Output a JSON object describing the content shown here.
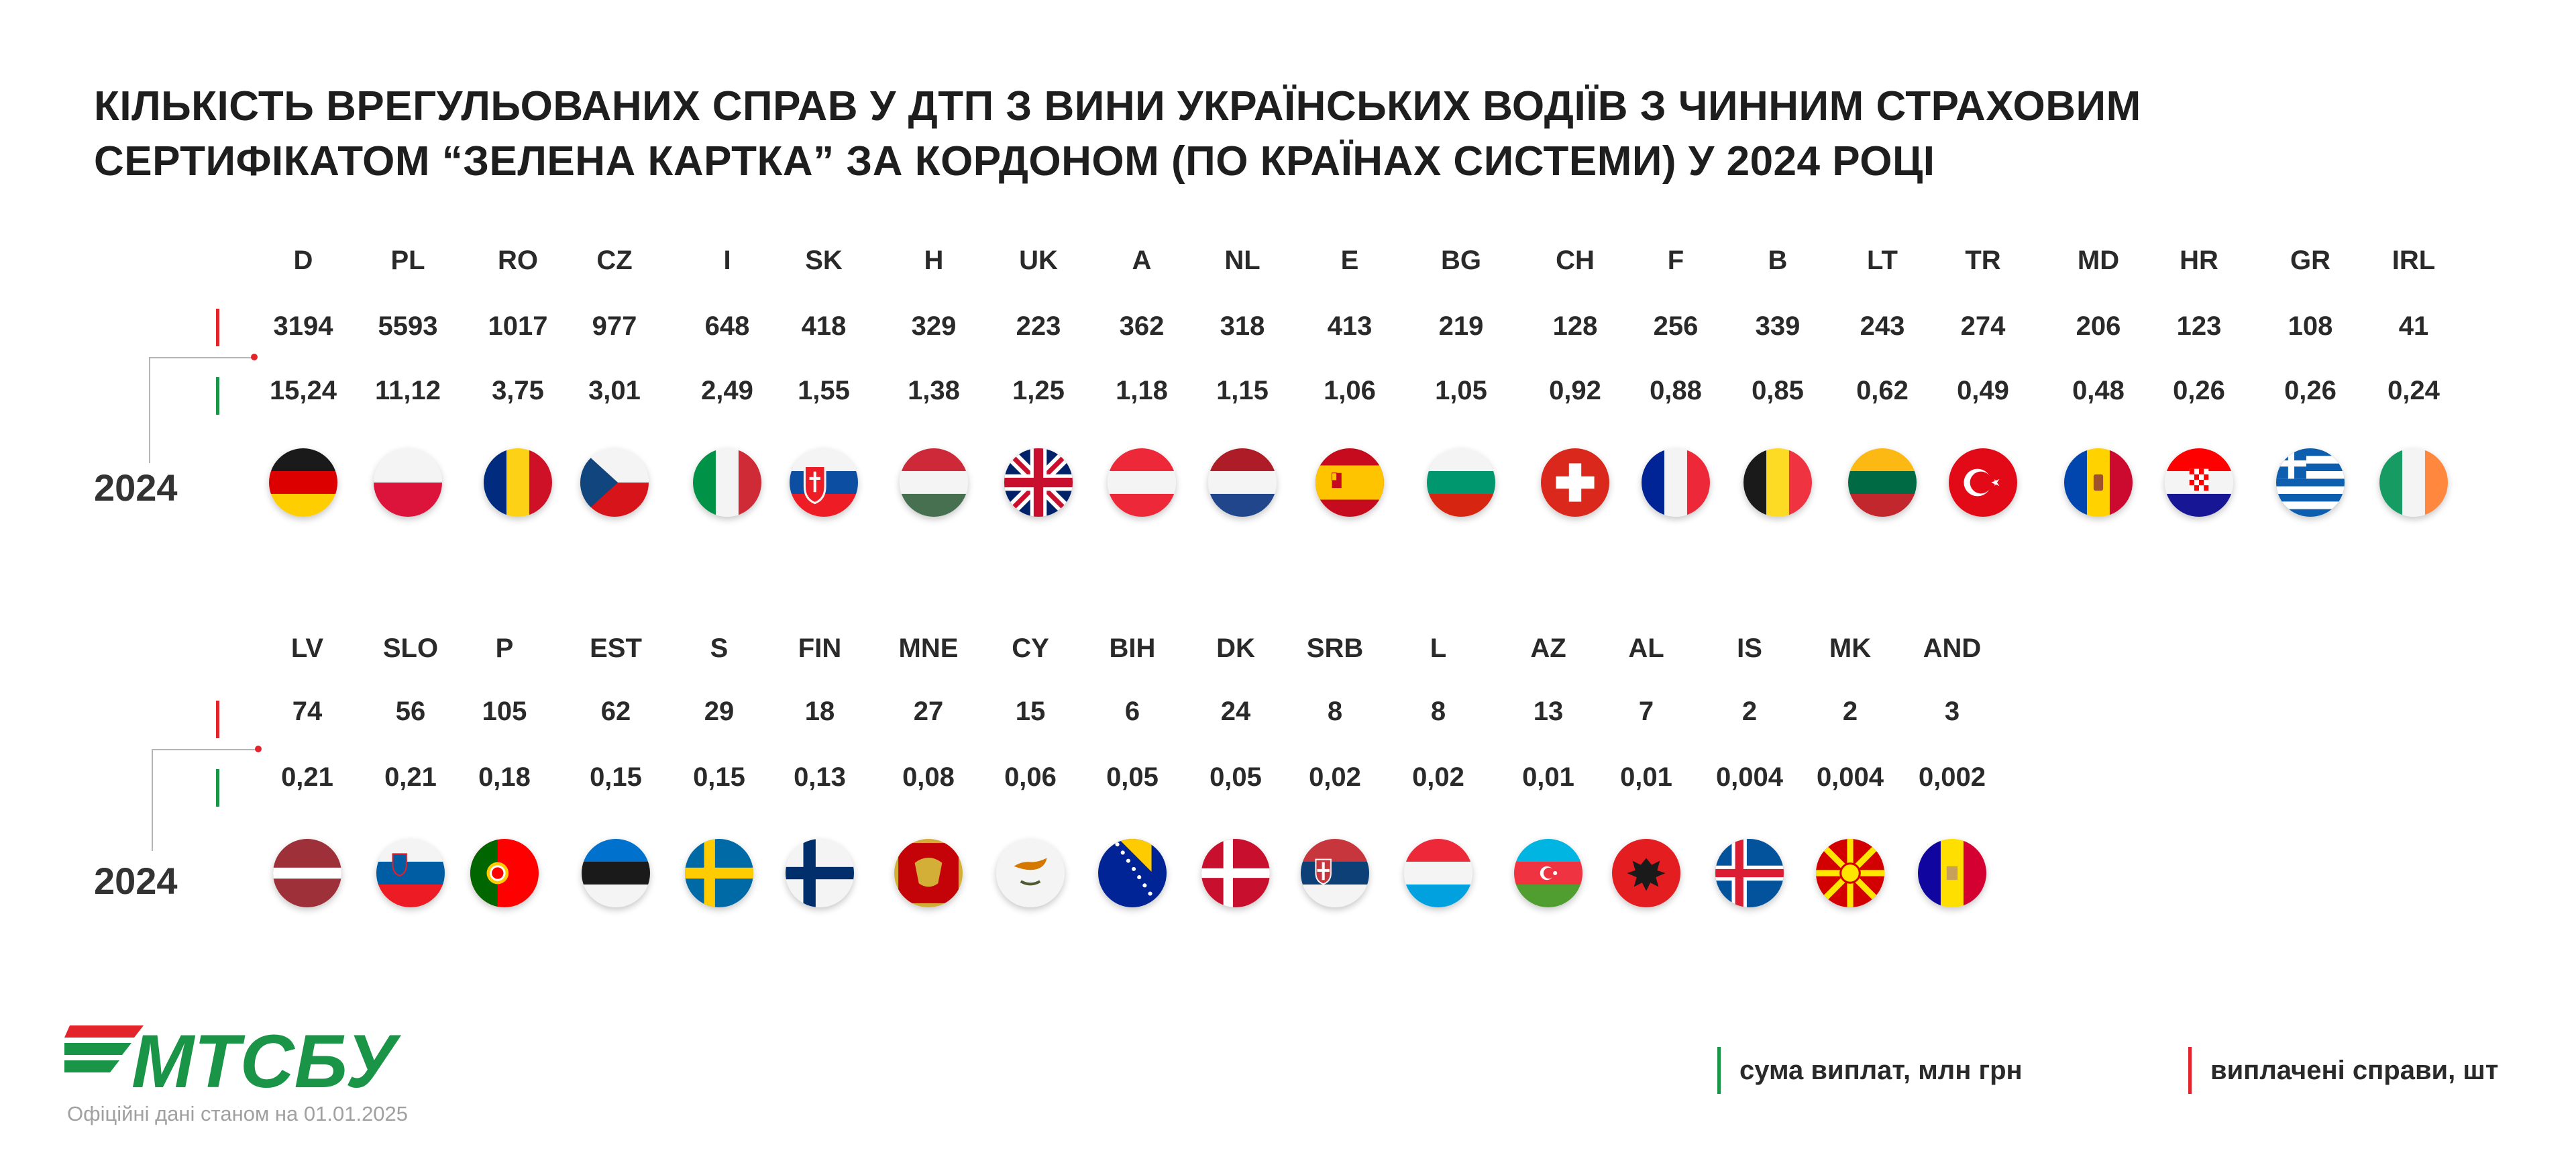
{
  "title": {
    "line1": "КІЛЬКІСТЬ ВРЕГУЛЬОВАНИХ СПРАВ У ДТП З ВИНИ УКРАЇНСЬКИХ ВОДІЇВ З ЧИННИМ СТРАХОВИМ",
    "line2": "СЕРТИФІКАТОМ “ЗЕЛЕНА КАРТКА” ЗА КОРДОНОМ (ПО КРАЇНАХ СИСТЕМИ) У 2024 РОЦІ"
  },
  "colors": {
    "cases": "#e3242b",
    "payouts": "#1a9446",
    "brand_green": "#1a9446",
    "brand_red": "#e3242b"
  },
  "legend": {
    "payouts_label": "сума виплат, млн грн",
    "cases_label": "виплачені справи, шт"
  },
  "source_note": "Офіційні дані станом на 01.01.2025",
  "logo_text": "МТСБУ",
  "chart_data": {
    "type": "table",
    "title": "КІЛЬКІСТЬ ВРЕГУЛЬОВАНИХ СПРАВ У ДТП З ВИНИ УКРАЇНСЬКИХ ВОДІЇВ З ЧИННИМ СТРАХОВИМ СЕРТИФІКАТОМ “ЗЕЛЕНА КАРТКА” ЗА КОРДОНОМ (ПО КРАЇНАХ СИСТЕМИ) У 2024 РОЦІ",
    "rows": [
      {
        "year": "2024",
        "countries": [
          {
            "code": "D",
            "cases": "3194",
            "payout": "15,24",
            "flag": "germany-flag"
          },
          {
            "code": "PL",
            "cases": "5593",
            "payout": "11,12",
            "flag": "poland-flag"
          },
          {
            "code": "RO",
            "cases": "1017",
            "payout": "3,75",
            "flag": "romania-flag"
          },
          {
            "code": "CZ",
            "cases": "977",
            "payout": "3,01",
            "flag": "czechia-flag"
          },
          {
            "code": "I",
            "cases": "648",
            "payout": "2,49",
            "flag": "italy-flag"
          },
          {
            "code": "SK",
            "cases": "418",
            "payout": "1,55",
            "flag": "slovakia-flag"
          },
          {
            "code": "H",
            "cases": "329",
            "payout": "1,38",
            "flag": "hungary-flag"
          },
          {
            "code": "UK",
            "cases": "223",
            "payout": "1,25",
            "flag": "uk-flag"
          },
          {
            "code": "A",
            "cases": "362",
            "payout": "1,18",
            "flag": "austria-flag"
          },
          {
            "code": "NL",
            "cases": "318",
            "payout": "1,15",
            "flag": "netherlands-flag"
          },
          {
            "code": "E",
            "cases": "413",
            "payout": "1,06",
            "flag": "spain-flag"
          },
          {
            "code": "BG",
            "cases": "219",
            "payout": "1,05",
            "flag": "bulgaria-flag"
          },
          {
            "code": "CH",
            "cases": "128",
            "payout": "0,92",
            "flag": "switzerland-flag"
          },
          {
            "code": "F",
            "cases": "256",
            "payout": "0,88",
            "flag": "france-flag"
          },
          {
            "code": "B",
            "cases": "339",
            "payout": "0,85",
            "flag": "belgium-flag"
          },
          {
            "code": "LT",
            "cases": "243",
            "payout": "0,62",
            "flag": "lithuania-flag"
          },
          {
            "code": "TR",
            "cases": "274",
            "payout": "0,49",
            "flag": "turkey-flag"
          },
          {
            "code": "MD",
            "cases": "206",
            "payout": "0,48",
            "flag": "moldova-flag"
          },
          {
            "code": "HR",
            "cases": "123",
            "payout": "0,26",
            "flag": "croatia-flag"
          },
          {
            "code": "GR",
            "cases": "108",
            "payout": "0,26",
            "flag": "greece-flag"
          },
          {
            "code": "IRL",
            "cases": "41",
            "payout": "0,24",
            "flag": "ireland-flag"
          }
        ]
      },
      {
        "year": "2024",
        "countries": [
          {
            "code": "LV",
            "cases": "74",
            "payout": "0,21",
            "flag": "latvia-flag"
          },
          {
            "code": "SLO",
            "cases": "56",
            "payout": "0,21",
            "flag": "slovenia-flag"
          },
          {
            "code": "P",
            "cases": "105",
            "payout": "0,18",
            "flag": "portugal-flag"
          },
          {
            "code": "EST",
            "cases": "62",
            "payout": "0,15",
            "flag": "estonia-flag"
          },
          {
            "code": "S",
            "cases": "29",
            "payout": "0,15",
            "flag": "sweden-flag"
          },
          {
            "code": "FIN",
            "cases": "18",
            "payout": "0,13",
            "flag": "finland-flag"
          },
          {
            "code": "MNE",
            "cases": "27",
            "payout": "0,08",
            "flag": "montenegro-flag"
          },
          {
            "code": "CY",
            "cases": "15",
            "payout": "0,06",
            "flag": "cyprus-flag"
          },
          {
            "code": "BIH",
            "cases": "6",
            "payout": "0,05",
            "flag": "bosnia-flag"
          },
          {
            "code": "DK",
            "cases": "24",
            "payout": "0,05",
            "flag": "denmark-flag"
          },
          {
            "code": "SRB",
            "cases": "8",
            "payout": "0,02",
            "flag": "serbia-flag"
          },
          {
            "code": "L",
            "cases": "8",
            "payout": "0,02",
            "flag": "luxembourg-flag"
          },
          {
            "code": "AZ",
            "cases": "13",
            "payout": "0,01",
            "flag": "azerbaijan-flag"
          },
          {
            "code": "AL",
            "cases": "7",
            "payout": "0,01",
            "flag": "albania-flag"
          },
          {
            "code": "IS",
            "cases": "2",
            "payout": "0,004",
            "flag": "iceland-flag"
          },
          {
            "code": "MK",
            "cases": "2",
            "payout": "0,004",
            "flag": "north-macedonia-flag"
          },
          {
            "code": "AND",
            "cases": "3",
            "payout": "0,002",
            "flag": "andorra-flag"
          }
        ]
      }
    ]
  }
}
